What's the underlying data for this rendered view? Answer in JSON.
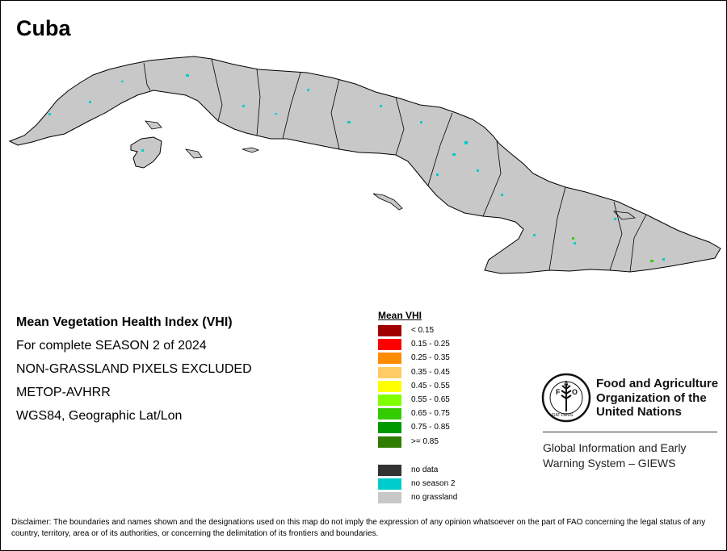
{
  "map": {
    "title": "Cuba",
    "info_lines": [
      "Mean Vegetation Health Index (VHI)",
      "For complete SEASON 2 of 2024",
      "NON-GRASSLAND PIXELS EXCLUDED",
      "METOP-AVHRR",
      "WGS84, Geographic Lat/Lon"
    ],
    "land_color": "#c8c8c8",
    "season_color": "#00cccc",
    "boundary_color": "#000000"
  },
  "legend": {
    "title": "Mean VHI",
    "classes": [
      {
        "label": "< 0.15",
        "color": "#a00000"
      },
      {
        "label": "0.15 - 0.25",
        "color": "#ff0000"
      },
      {
        "label": "0.25 - 0.35",
        "color": "#ff8c00"
      },
      {
        "label": "0.35 - 0.45",
        "color": "#ffcc66"
      },
      {
        "label": "0.45 - 0.55",
        "color": "#ffff00"
      },
      {
        "label": "0.55 - 0.65",
        "color": "#80ff00"
      },
      {
        "label": "0.65 - 0.75",
        "color": "#33cc00"
      },
      {
        "label": "0.75 - 0.85",
        "color": "#009900"
      },
      {
        "label": ">= 0.85",
        "color": "#2e7d00"
      }
    ],
    "special": [
      {
        "label": "no data",
        "color": "#333333"
      },
      {
        "label": "no season 2",
        "color": "#00cccc"
      },
      {
        "label": "no grassland",
        "color": "#c8c8c8"
      }
    ]
  },
  "logo": {
    "org_name_lines": [
      "Food and Agriculture",
      "Organization of the",
      "United Nations"
    ],
    "system_lines": [
      "Global Information and Early",
      "Warning System – GIEWS"
    ],
    "emblem_text": "FAO",
    "emblem_motto": "FIAT PANIS"
  },
  "disclaimer": "Disclaimer: The boundaries and names shown and the designations used on this map do not imply the expression of any opinion whatsoever on the part of FAO concerning the legal status of any country, territory, area or of its authorities, or concerning the delimitation of its frontiers and boundaries."
}
